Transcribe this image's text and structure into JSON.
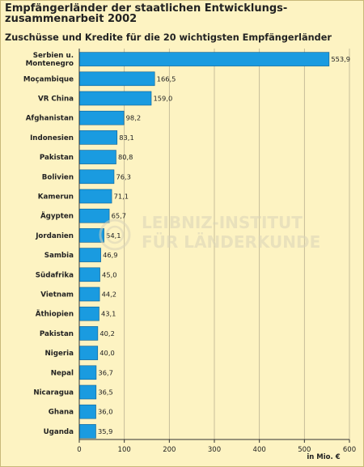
{
  "title": "Empfängerländer der staatlichen Entwicklungs-zusammenarbeit 2002",
  "subtitle": "Zuschüsse und Kredite für die 20 wichtigsten Empfängerländer",
  "watermark": {
    "line1": "LEIBNIZ-INSTITUT",
    "line2": "FÜR LÄNDERKUNDE"
  },
  "colors": {
    "bar": "#1a9be0",
    "bar_edge": "#0d5f93",
    "background": "#fdf3c2",
    "grid": "#b9b190",
    "text": "#222222"
  },
  "chart_data": {
    "type": "bar",
    "orientation": "horizontal",
    "categories": [
      "Serbien u. Montenegro",
      "Moçambique",
      "VR China",
      "Afghanistan",
      "Indonesien",
      "Pakistan",
      "Bolivien",
      "Kamerun",
      "Ägypten",
      "Jordanien",
      "Sambia",
      "Südafrika",
      "Vietnam",
      "Äthiopien",
      "Pakistan",
      "Nigeria",
      "Nepal",
      "Nicaragua",
      "Ghana",
      "Uganda"
    ],
    "values": [
      553.9,
      166.5,
      159.0,
      98.2,
      83.1,
      80.8,
      76.3,
      71.1,
      65.7,
      54.1,
      46.9,
      45.0,
      44.2,
      43.1,
      40.2,
      40.0,
      36.7,
      36.5,
      36.0,
      35.9
    ],
    "value_labels": [
      "553,9",
      "166,5",
      "159,0",
      "98,2",
      "83,1",
      "80,8",
      "76,3",
      "71,1",
      "65,7",
      "54,1",
      "46,9",
      "45,0",
      "44,2",
      "43,1",
      "40,2",
      "40,0",
      "36,7",
      "36,5",
      "36,0",
      "35,9"
    ],
    "xlim": [
      0,
      600
    ],
    "xticks": [
      0,
      100,
      200,
      300,
      400,
      500,
      600
    ],
    "xlabel": "in Mio. €",
    "ylabel": "",
    "grid": true
  }
}
